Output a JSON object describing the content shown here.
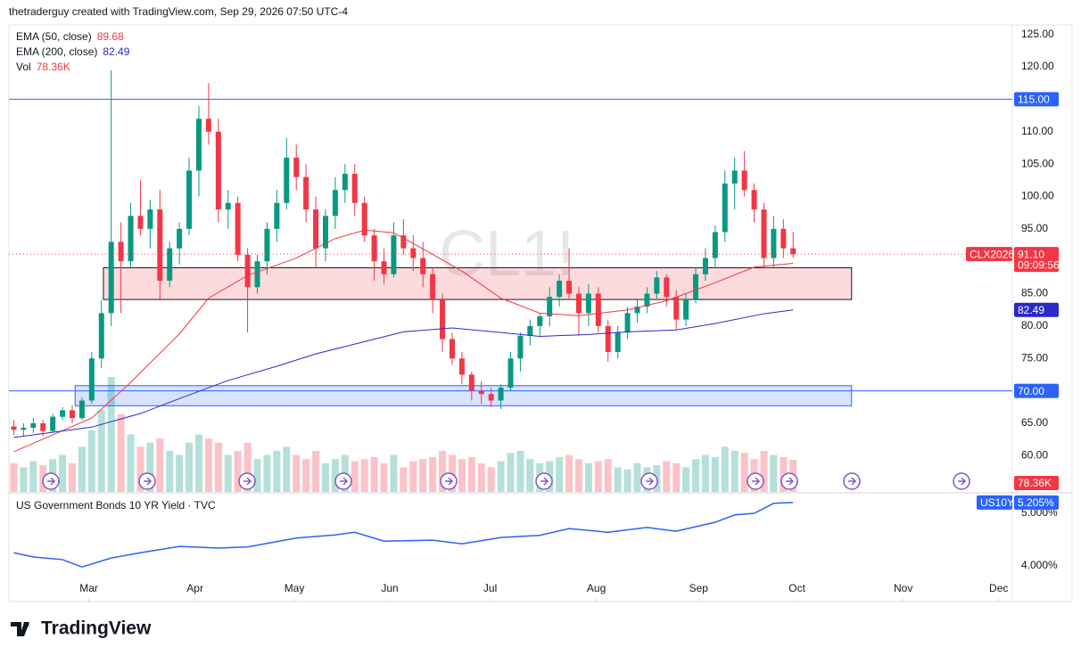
{
  "header": "thetraderguy created with TradingView.com, Sep 29, 2026 07:50 UTC-4",
  "brand": "TradingView",
  "chart_data": [
    {
      "type": "candlestick",
      "symbol": "CL1!",
      "ticker": "CLX2026",
      "last_label": "91.10",
      "countdown": "09:09:56",
      "up_color": "#089981",
      "down_color": "#f23645",
      "grid": false,
      "xlim": [
        -0.5,
        102.5
      ],
      "xticks": [
        {
          "value": 7.7,
          "label": "Mar"
        },
        {
          "value": 18.6,
          "label": "Apr"
        },
        {
          "value": 28.8,
          "label": "May"
        },
        {
          "value": 38.6,
          "label": "Jun"
        },
        {
          "value": 48.9,
          "label": "Jul"
        },
        {
          "value": 59.8,
          "label": "Aug"
        },
        {
          "value": 70.3,
          "label": "Sep"
        },
        {
          "value": 80.4,
          "label": "Oct"
        },
        {
          "value": 91.3,
          "label": "Nov"
        },
        {
          "value": 101.1,
          "label": "Dec"
        }
      ],
      "ylim": [
        54.4,
        126.2
      ],
      "yticks": [
        {
          "value": 125,
          "label": "125.00"
        },
        {
          "value": 120,
          "label": "120.00"
        },
        {
          "value": 110,
          "label": "110.00"
        },
        {
          "value": 105,
          "label": "105.00"
        },
        {
          "value": 100,
          "label": "100.00"
        },
        {
          "value": 95,
          "label": "95.00"
        },
        {
          "value": 85,
          "label": "85.00"
        },
        {
          "value": 80,
          "label": "80.00"
        },
        {
          "value": 75,
          "label": "75.00"
        },
        {
          "value": 65,
          "label": "65.00"
        },
        {
          "value": 60,
          "label": "60.00"
        }
      ],
      "open": [
        64.5,
        64.0,
        64.3,
        65.0,
        63.8,
        66.0,
        67.0,
        65.8,
        68.5,
        75.0,
        82,
        93,
        90,
        97,
        95,
        98,
        87,
        92,
        95,
        104,
        112,
        110,
        98,
        99,
        91,
        86,
        90,
        95,
        99,
        106,
        103,
        98,
        92,
        97,
        101,
        103.5,
        99,
        94,
        90,
        88,
        94,
        92,
        90.5,
        88,
        84,
        78,
        75,
        72.5,
        70,
        69.5,
        68.5,
        70.5,
        75,
        78.5,
        80,
        81.5,
        84.5,
        87,
        85,
        82,
        85,
        80,
        76,
        79,
        82,
        83,
        85,
        87.5,
        84.5,
        81,
        84,
        88,
        90.5,
        94.5,
        102,
        104,
        101,
        98,
        90.5,
        95,
        92
      ],
      "high": [
        65.5,
        65.0,
        65.8,
        65.5,
        66.5,
        67.5,
        67.8,
        69.0,
        76.0,
        84.0,
        119.5,
        96.0,
        99.0,
        102.5,
        99.5,
        101.0,
        93.0,
        96.0,
        106.0,
        114.0,
        117.5,
        112.0,
        101.0,
        100.0,
        92.0,
        91.0,
        96.0,
        101.0,
        109.0,
        108.0,
        105.0,
        100.0,
        98.0,
        103.0,
        105.0,
        105.0,
        100.0,
        95.0,
        92.0,
        96.0,
        96.5,
        94.0,
        93.0,
        89.0,
        85.0,
        79.0,
        76.0,
        73.0,
        71.5,
        70.5,
        71.0,
        76.0,
        79.0,
        81.0,
        82.0,
        86.0,
        88.0,
        92.0,
        86.0,
        86.5,
        86.0,
        81.0,
        80.0,
        83.0,
        84.0,
        86.0,
        88.5,
        88.0,
        85.5,
        85.0,
        89.0,
        92.0,
        95.5,
        104.0,
        106.0,
        107.0,
        102.0,
        99.0,
        97.0,
        96.5,
        94.5
      ],
      "low": [
        63.2,
        63.0,
        63.5,
        63.0,
        63.5,
        65.5,
        65.0,
        65.5,
        68.0,
        73.5,
        80.0,
        82.0,
        89.0,
        94.0,
        92.0,
        84.0,
        86.0,
        89.5,
        94.0,
        100.0,
        108.0,
        96.0,
        95.0,
        90.0,
        79.0,
        85.0,
        88.0,
        93.0,
        98.0,
        101.0,
        96.0,
        89.0,
        90.0,
        95.0,
        99.0,
        97.0,
        93.0,
        87.0,
        86.5,
        87.5,
        91.0,
        88.5,
        86.0,
        82.0,
        76.0,
        74.0,
        71.0,
        68.5,
        68.0,
        67.5,
        67.2,
        70.0,
        73.0,
        77.0,
        78.5,
        80.0,
        83.0,
        84.0,
        78.5,
        80.0,
        79.0,
        74.5,
        75.0,
        78.0,
        80.5,
        82.0,
        84.0,
        83.0,
        79.5,
        80.0,
        83.5,
        87.0,
        89.0,
        93.0,
        98.0,
        100.0,
        96.0,
        89.0,
        89.0,
        90.5,
        90.5
      ],
      "close": [
        64.0,
        64.3,
        65.0,
        63.8,
        66.0,
        67.0,
        65.8,
        68.5,
        75.0,
        82.0,
        93,
        90,
        97,
        95,
        98,
        87,
        92,
        95,
        104,
        112,
        110,
        98,
        99,
        91,
        86,
        90,
        95,
        99,
        106,
        103,
        98,
        92,
        97,
        101,
        103.5,
        99,
        94,
        90,
        88,
        94,
        92,
        90.5,
        88,
        84,
        78,
        75,
        72.5,
        70,
        69.5,
        68.5,
        70.5,
        75,
        78.5,
        80,
        81.5,
        84.5,
        87,
        85,
        82,
        85,
        80,
        76,
        79,
        82,
        83,
        85,
        87.5,
        84.5,
        81,
        84,
        88,
        90.5,
        94.5,
        102,
        104,
        101,
        98,
        90.5,
        95,
        92,
        91.1
      ],
      "volume": {
        "name": "Vol",
        "ylim": [
          0,
          330
        ],
        "last_label": "78.36K",
        "values": [
          70,
          60,
          75,
          65,
          80,
          90,
          70,
          110,
          150,
          200,
          280,
          190,
          140,
          110,
          120,
          130,
          100,
          90,
          120,
          140,
          130,
          120,
          90,
          100,
          120,
          80,
          90,
          100,
          110,
          90,
          80,
          100,
          70,
          80,
          90,
          75,
          80,
          85,
          70,
          90,
          60,
          75,
          80,
          85,
          100,
          90,
          80,
          85,
          70,
          60,
          75,
          95,
          100,
          80,
          70,
          75,
          85,
          90,
          80,
          70,
          75,
          80,
          60,
          55,
          70,
          60,
          65,
          75,
          70,
          60,
          80,
          90,
          85,
          110,
          100,
          95,
          80,
          100,
          90,
          85,
          78.36
        ]
      },
      "series": [
        {
          "name": "EMA (50, close)",
          "color": "#f23645",
          "last_label": "89.68",
          "x": [
            0,
            8,
            12,
            17,
            20,
            24,
            29,
            33,
            36,
            39,
            42,
            46,
            50,
            54,
            58,
            63,
            67,
            72,
            76,
            80
          ],
          "values": [
            60.6,
            65.8,
            71.3,
            78.8,
            84.3,
            87.8,
            90.5,
            93.5,
            94.8,
            94.4,
            91.9,
            88.5,
            84.3,
            82.0,
            81.6,
            82.5,
            83.9,
            86.7,
            89.1,
            89.68
          ]
        },
        {
          "name": "EMA (200, close)",
          "color": "#2a2ac8",
          "last_label": "82.49",
          "x": [
            0,
            8,
            13,
            17,
            22,
            27,
            31,
            36,
            40,
            45,
            50,
            54,
            59,
            63,
            68,
            72,
            77,
            80
          ],
          "values": [
            62.8,
            64.4,
            66.5,
            68.8,
            71.6,
            73.8,
            75.7,
            77.6,
            79.1,
            79.7,
            79.0,
            78.4,
            78.7,
            79.1,
            79.4,
            80.4,
            81.9,
            82.49
          ]
        }
      ],
      "hlines": [
        {
          "value": 115,
          "label": "115.00",
          "color": "#2962ff"
        },
        {
          "value": 70,
          "label": "70.00",
          "color": "#2962ff"
        }
      ],
      "zones": [
        {
          "from": 84.1,
          "to": 89.0,
          "x": [
            9.2,
            86.0
          ],
          "color": "#f23645",
          "stroke": "#131722"
        },
        {
          "from": 67.7,
          "to": 70.8,
          "x": [
            6.3,
            86.0
          ],
          "color": "#2962ff",
          "stroke": "#2962ff"
        }
      ]
    },
    {
      "type": "line",
      "title": "US Government Bonds 10 YR Yield · TVC",
      "symbol": "US10Y",
      "xlim": [
        -0.5,
        102.5
      ],
      "ylim": [
        3.373,
        5.356
      ],
      "yticks": [
        {
          "value": 5,
          "label": "5.000%"
        },
        {
          "value": 4,
          "label": "4.000%"
        }
      ],
      "series": [
        {
          "color": "#2962ff",
          "last_label": "5.205%",
          "x": [
            0,
            2,
            5,
            7,
            10,
            13,
            17,
            21,
            24,
            29,
            33,
            35,
            38,
            43,
            46,
            50,
            54,
            57,
            61,
            65,
            68,
            72,
            74,
            76,
            78,
            80
          ],
          "values": [
            4.25,
            4.17,
            4.12,
            3.98,
            4.15,
            4.25,
            4.37,
            4.34,
            4.36,
            4.53,
            4.59,
            4.64,
            4.47,
            4.49,
            4.42,
            4.54,
            4.58,
            4.71,
            4.64,
            4.73,
            4.66,
            4.83,
            4.97,
            5.0,
            5.19,
            5.205
          ]
        }
      ]
    }
  ]
}
